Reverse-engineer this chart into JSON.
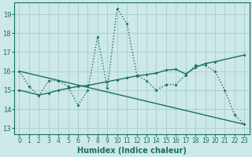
{
  "xlabel": "Humidex (Indice chaleur)",
  "bg_color": "#cce8e8",
  "grid_color": "#aacccc",
  "line_color": "#1a7060",
  "xlim": [
    -0.5,
    23.5
  ],
  "ylim": [
    12.7,
    19.6
  ],
  "yticks": [
    13,
    14,
    15,
    16,
    17,
    18,
    19
  ],
  "xticks": [
    0,
    1,
    2,
    3,
    4,
    5,
    6,
    7,
    8,
    9,
    10,
    11,
    12,
    13,
    14,
    15,
    16,
    17,
    18,
    19,
    20,
    21,
    22,
    23
  ],
  "line1_x": [
    0,
    1,
    2,
    3,
    4,
    5,
    6,
    7,
    8,
    9,
    10,
    11,
    12,
    13,
    14,
    15,
    16,
    17,
    18,
    19,
    20,
    21,
    22,
    23
  ],
  "line1_y": [
    16.0,
    15.2,
    14.7,
    15.5,
    15.5,
    15.2,
    14.2,
    15.0,
    17.8,
    15.1,
    19.3,
    18.5,
    15.8,
    15.5,
    15.0,
    15.3,
    15.3,
    15.8,
    16.3,
    16.3,
    16.0,
    15.0,
    13.7,
    13.2
  ],
  "line2_x": [
    0,
    2,
    3,
    4,
    5,
    6,
    7,
    9,
    10,
    11,
    12,
    13,
    14,
    15,
    16,
    17,
    18,
    19,
    20,
    23
  ],
  "line2_y": [
    15.0,
    14.75,
    14.85,
    15.0,
    15.1,
    15.2,
    15.25,
    15.45,
    15.55,
    15.65,
    15.75,
    15.82,
    15.9,
    16.05,
    16.1,
    15.85,
    16.2,
    16.4,
    16.5,
    16.85
  ],
  "line3_x": [
    0,
    23
  ],
  "line3_y": [
    16.0,
    13.2
  ]
}
